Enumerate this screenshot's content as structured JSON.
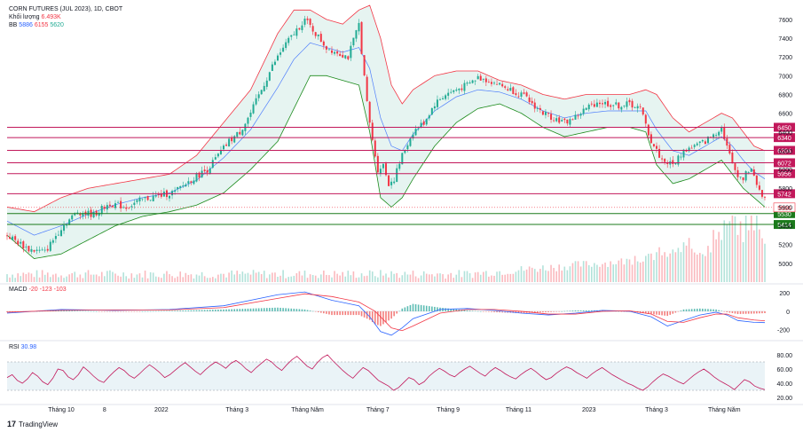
{
  "header": {
    "symbol": "CORN FUTURES (JUL 2023), 1D, CBOT",
    "volume_label": "Khối lượng",
    "volume_value": "6.493K",
    "bb_label": "BB",
    "bb_values": [
      "5886",
      "6155",
      "5620"
    ]
  },
  "macd_legend": {
    "label": "MACD",
    "values": [
      "-20",
      "-123",
      "-103"
    ]
  },
  "rsi_legend": {
    "label": "RSI",
    "value": "30.98"
  },
  "brand": {
    "name": "TradingView"
  },
  "colors": {
    "up": "#22ab94",
    "down": "#f23645",
    "bb_upper": "#f23645",
    "bb_lower": "#1b8a1b",
    "bb_basis": "#2962ff",
    "bb_fill": "#e6f4f1",
    "res_line": "#c2185b",
    "sup_line": "#1b7a1b",
    "rsi_fill": "#eaf3f7",
    "macd_line": "#2962ff",
    "signal_line": "#f23645"
  },
  "chart_data": [
    {
      "type": "candlestick",
      "title": "CORN FUTURES (JUL 2023), 1D, CBOT",
      "ylim": [
        4800,
        7750
      ],
      "y_ticks": [
        "5000",
        "5200",
        "5400",
        "5600",
        "5800",
        "6000",
        "6200",
        "6400",
        "6600",
        "6800",
        "7000",
        "7200",
        "7400",
        "7600"
      ],
      "x_ticks": [
        "Tháng 10",
        "8",
        "2022",
        "Tháng 3",
        "Tháng Năm",
        "Tháng 7",
        "Tháng 9",
        "Tháng 11",
        "2023",
        "Tháng 3",
        "Tháng Năm"
      ],
      "x_tick_index": [
        20,
        36,
        57,
        85,
        111,
        137,
        163,
        189,
        215,
        240,
        265
      ],
      "close_path": [
        [
          0,
          5300
        ],
        [
          8,
          5150
        ],
        [
          14,
          5120
        ],
        [
          20,
          5380
        ],
        [
          26,
          5550
        ],
        [
          32,
          5520
        ],
        [
          38,
          5640
        ],
        [
          44,
          5600
        ],
        [
          50,
          5680
        ],
        [
          56,
          5720
        ],
        [
          62,
          5760
        ],
        [
          66,
          5850
        ],
        [
          70,
          5930
        ],
        [
          74,
          6000
        ],
        [
          78,
          6150
        ],
        [
          82,
          6300
        ],
        [
          86,
          6400
        ],
        [
          90,
          6600
        ],
        [
          94,
          6850
        ],
        [
          98,
          7100
        ],
        [
          102,
          7300
        ],
        [
          106,
          7450
        ],
        [
          110,
          7600
        ],
        [
          114,
          7450
        ],
        [
          118,
          7300
        ],
        [
          122,
          7250
        ],
        [
          126,
          7200
        ],
        [
          130,
          7550
        ],
        [
          133,
          6700
        ],
        [
          135,
          6300
        ],
        [
          137,
          6000
        ],
        [
          139,
          6050
        ],
        [
          141,
          5850
        ],
        [
          143,
          5900
        ],
        [
          146,
          6150
        ],
        [
          150,
          6400
        ],
        [
          154,
          6500
        ],
        [
          158,
          6700
        ],
        [
          162,
          6800
        ],
        [
          166,
          6850
        ],
        [
          170,
          6900
        ],
        [
          174,
          6980
        ],
        [
          178,
          6950
        ],
        [
          182,
          6900
        ],
        [
          186,
          6850
        ],
        [
          190,
          6800
        ],
        [
          194,
          6700
        ],
        [
          198,
          6600
        ],
        [
          202,
          6550
        ],
        [
          206,
          6500
        ],
        [
          210,
          6560
        ],
        [
          214,
          6650
        ],
        [
          218,
          6720
        ],
        [
          222,
          6700
        ],
        [
          226,
          6680
        ],
        [
          230,
          6700
        ],
        [
          234,
          6650
        ],
        [
          238,
          6300
        ],
        [
          242,
          6100
        ],
        [
          246,
          6050
        ],
        [
          250,
          6200
        ],
        [
          254,
          6250
        ],
        [
          258,
          6300
        ],
        [
          262,
          6400
        ],
        [
          264,
          6450
        ],
        [
          266,
          6250
        ],
        [
          268,
          6050
        ],
        [
          270,
          5950
        ],
        [
          272,
          5900
        ],
        [
          274,
          6000
        ],
        [
          276,
          5960
        ],
        [
          278,
          5750
        ],
        [
          280,
          5700
        ]
      ],
      "bb_upper_path": [
        [
          0,
          5600
        ],
        [
          10,
          5550
        ],
        [
          20,
          5700
        ],
        [
          30,
          5800
        ],
        [
          40,
          5850
        ],
        [
          50,
          5900
        ],
        [
          60,
          5950
        ],
        [
          70,
          6150
        ],
        [
          80,
          6500
        ],
        [
          90,
          6850
        ],
        [
          100,
          7450
        ],
        [
          106,
          7700
        ],
        [
          112,
          7700
        ],
        [
          118,
          7600
        ],
        [
          124,
          7550
        ],
        [
          130,
          7700
        ],
        [
          134,
          7750
        ],
        [
          138,
          7400
        ],
        [
          142,
          6900
        ],
        [
          146,
          6700
        ],
        [
          150,
          6850
        ],
        [
          158,
          7000
        ],
        [
          166,
          7050
        ],
        [
          174,
          7050
        ],
        [
          182,
          6950
        ],
        [
          190,
          6900
        ],
        [
          198,
          6800
        ],
        [
          206,
          6750
        ],
        [
          214,
          6800
        ],
        [
          222,
          6800
        ],
        [
          230,
          6800
        ],
        [
          236,
          6850
        ],
        [
          240,
          6800
        ],
        [
          246,
          6550
        ],
        [
          252,
          6400
        ],
        [
          258,
          6500
        ],
        [
          264,
          6600
        ],
        [
          268,
          6550
        ],
        [
          272,
          6400
        ],
        [
          276,
          6250
        ],
        [
          280,
          6200
        ]
      ],
      "bb_lower_path": [
        [
          0,
          5300
        ],
        [
          10,
          5050
        ],
        [
          20,
          5100
        ],
        [
          30,
          5250
        ],
        [
          40,
          5400
        ],
        [
          50,
          5500
        ],
        [
          60,
          5550
        ],
        [
          70,
          5620
        ],
        [
          80,
          5750
        ],
        [
          90,
          6000
        ],
        [
          100,
          6300
        ],
        [
          106,
          6650
        ],
        [
          112,
          7000
        ],
        [
          118,
          7000
        ],
        [
          124,
          6950
        ],
        [
          130,
          6900
        ],
        [
          134,
          6400
        ],
        [
          138,
          5700
        ],
        [
          142,
          5600
        ],
        [
          146,
          5700
        ],
        [
          150,
          5900
        ],
        [
          158,
          6250
        ],
        [
          166,
          6500
        ],
        [
          174,
          6650
        ],
        [
          182,
          6700
        ],
        [
          190,
          6600
        ],
        [
          198,
          6450
        ],
        [
          206,
          6350
        ],
        [
          214,
          6400
        ],
        [
          222,
          6450
        ],
        [
          230,
          6450
        ],
        [
          236,
          6400
        ],
        [
          240,
          6050
        ],
        [
          246,
          5850
        ],
        [
          252,
          5900
        ],
        [
          258,
          6000
        ],
        [
          264,
          6100
        ],
        [
          268,
          5950
        ],
        [
          272,
          5800
        ],
        [
          276,
          5700
        ],
        [
          280,
          5600
        ]
      ],
      "horizontal_levels": [
        {
          "label": "6450",
          "value": 6450,
          "kind": "resistance"
        },
        {
          "label": "6340",
          "value": 6340,
          "kind": "resistance"
        },
        {
          "label": "6204",
          "value": 6204,
          "kind": "resistance"
        },
        {
          "label": "6072",
          "value": 6072,
          "kind": "resistance"
        },
        {
          "label": "5956",
          "value": 5956,
          "kind": "resistance"
        },
        {
          "label": "5742",
          "value": 5742,
          "kind": "resistance"
        },
        {
          "label": "5530",
          "value": 5530,
          "kind": "support"
        },
        {
          "label": "5414",
          "value": 5414,
          "kind": "support"
        }
      ],
      "last_price": {
        "label": "5596",
        "value": 5596
      }
    },
    {
      "type": "line",
      "title": "MACD",
      "ylim": [
        -280,
        240
      ],
      "y_ticks": [
        "200",
        "0",
        "-200"
      ],
      "y_tick_values": [
        200,
        0,
        -200
      ],
      "series": [
        {
          "name": "MACD",
          "points": [
            [
              0,
              -20
            ],
            [
              20,
              20
            ],
            [
              40,
              10
            ],
            [
              60,
              20
            ],
            [
              80,
              60
            ],
            [
              100,
              180
            ],
            [
              110,
              210
            ],
            [
              120,
              120
            ],
            [
              130,
              60
            ],
            [
              134,
              -60
            ],
            [
              138,
              -220
            ],
            [
              142,
              -260
            ],
            [
              146,
              -180
            ],
            [
              150,
              -80
            ],
            [
              160,
              20
            ],
            [
              170,
              30
            ],
            [
              180,
              10
            ],
            [
              190,
              -20
            ],
            [
              200,
              -40
            ],
            [
              210,
              -20
            ],
            [
              220,
              10
            ],
            [
              230,
              0
            ],
            [
              238,
              -60
            ],
            [
              244,
              -160
            ],
            [
              250,
              -100
            ],
            [
              256,
              -40
            ],
            [
              262,
              -10
            ],
            [
              266,
              -40
            ],
            [
              270,
              -100
            ],
            [
              276,
              -120
            ],
            [
              280,
              -123
            ]
          ]
        },
        {
          "name": "Signal",
          "points": [
            [
              0,
              -10
            ],
            [
              20,
              10
            ],
            [
              40,
              15
            ],
            [
              60,
              15
            ],
            [
              80,
              40
            ],
            [
              100,
              140
            ],
            [
              110,
              190
            ],
            [
              120,
              160
            ],
            [
              130,
              100
            ],
            [
              136,
              0
            ],
            [
              142,
              -180
            ],
            [
              146,
              -210
            ],
            [
              150,
              -160
            ],
            [
              160,
              -20
            ],
            [
              170,
              20
            ],
            [
              180,
              20
            ],
            [
              190,
              0
            ],
            [
              200,
              -30
            ],
            [
              210,
              -30
            ],
            [
              220,
              0
            ],
            [
              230,
              5
            ],
            [
              238,
              -30
            ],
            [
              244,
              -110
            ],
            [
              250,
              -120
            ],
            [
              256,
              -70
            ],
            [
              262,
              -30
            ],
            [
              266,
              -30
            ],
            [
              270,
              -70
            ],
            [
              276,
              -95
            ],
            [
              280,
              -103
            ]
          ]
        }
      ]
    },
    {
      "type": "line",
      "title": "RSI",
      "ylim": [
        15,
        90
      ],
      "y_ticks": [
        "80.00",
        "60.00",
        "40.00",
        "20.00"
      ],
      "y_tick_values": [
        80,
        60,
        40,
        20
      ],
      "band": [
        30,
        70
      ],
      "values": [
        48,
        52,
        44,
        40,
        46,
        55,
        50,
        42,
        38,
        47,
        60,
        58,
        49,
        45,
        52,
        63,
        57,
        50,
        44,
        41,
        49,
        56,
        62,
        58,
        51,
        47,
        53,
        60,
        66,
        61,
        55,
        48,
        52,
        58,
        64,
        69,
        63,
        57,
        52,
        59,
        65,
        70,
        66,
        61,
        68,
        72,
        67,
        60,
        55,
        62,
        68,
        74,
        70,
        63,
        58,
        66,
        73,
        78,
        71,
        64,
        60,
        69,
        76,
        80,
        72,
        65,
        58,
        52,
        47,
        55,
        62,
        58,
        51,
        44,
        40,
        36,
        30,
        34,
        41,
        48,
        45,
        38,
        42,
        50,
        56,
        61,
        57,
        52,
        49,
        55,
        60,
        64,
        59,
        54,
        50,
        57,
        62,
        58,
        53,
        49,
        46,
        52,
        57,
        61,
        56,
        50,
        45,
        48,
        54,
        59,
        63,
        60,
        55,
        51,
        47,
        53,
        58,
        62,
        57,
        52,
        48,
        44,
        40,
        37,
        33,
        30,
        35,
        42,
        48,
        53,
        50,
        46,
        42,
        39,
        45,
        51,
        56,
        60,
        55,
        49,
        44,
        40,
        36,
        31,
        38,
        45,
        42,
        36,
        33,
        30.98
      ]
    }
  ]
}
